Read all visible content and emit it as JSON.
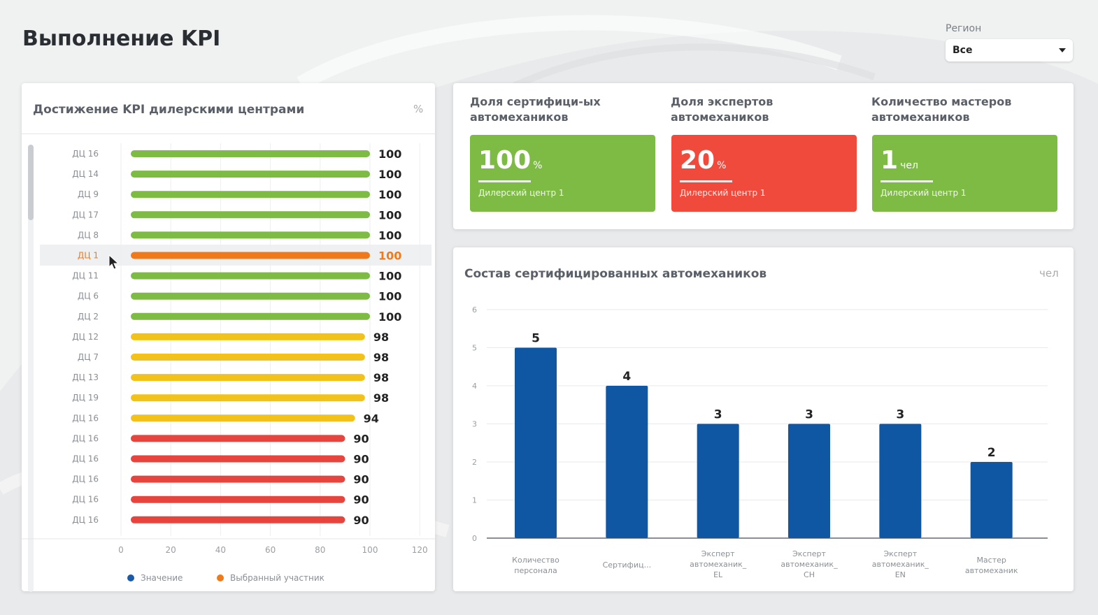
{
  "page": {
    "title": "Выполнение KPI"
  },
  "region": {
    "label": "Регион",
    "selected": "Все"
  },
  "kpi_chart": {
    "title": "Достижение KPI дилерскими центрами",
    "unit": "%",
    "legend": [
      {
        "label": "Значение",
        "color": "#1b5aa6"
      },
      {
        "label": "Выбранный участник",
        "color": "#f07a1a"
      }
    ],
    "colors": {
      "green": "#7dbb45",
      "orange": "#f07a1a",
      "yellow": "#f2c21b",
      "red": "#e6443c"
    },
    "chart_data": {
      "type": "bar",
      "orientation": "horizontal",
      "categories": [
        "ДЦ 16",
        "ДЦ 14",
        "ДЦ 9",
        "ДЦ 17",
        "ДЦ 8",
        "ДЦ 1",
        "ДЦ 11",
        "ДЦ 6",
        "ДЦ 2",
        "ДЦ 12",
        "ДЦ 7",
        "ДЦ 13",
        "ДЦ 19",
        "ДЦ 16",
        "ДЦ 16",
        "ДЦ 16",
        "ДЦ 16",
        "ДЦ 16",
        "ДЦ 16"
      ],
      "values": [
        100,
        100,
        100,
        100,
        100,
        100,
        100,
        100,
        100,
        98,
        98,
        98,
        98,
        94,
        90,
        90,
        90,
        90,
        90
      ],
      "bar_colors": [
        "green",
        "green",
        "green",
        "green",
        "green",
        "orange",
        "green",
        "green",
        "green",
        "yellow",
        "yellow",
        "yellow",
        "yellow",
        "yellow",
        "red",
        "red",
        "red",
        "red",
        "red"
      ],
      "selected_index": 5,
      "xlim": [
        0,
        120
      ],
      "xticks": [
        "0",
        "20",
        "40",
        "60",
        "80",
        "100",
        "120"
      ],
      "grid": true
    }
  },
  "kpi_tiles": [
    {
      "label": "Доля сертифици-ых автомехаников",
      "value": "100",
      "unit": "%",
      "sub": "Дилерский центр 1",
      "color": "#7dbb45"
    },
    {
      "label": "Доля экспертов автомехаников",
      "value": "20",
      "unit": "%",
      "sub": "Дилерский центр 1",
      "color": "#f04a3d"
    },
    {
      "label": "Количество мастеров автомехаников",
      "value": "1",
      "unit": "чел",
      "sub": "Дилерский центр 1",
      "color": "#7dbb45"
    }
  ],
  "composition_chart": {
    "title": "Состав сертифицированных автомехаников",
    "unit": "чел",
    "bar_color": "#0f57a3",
    "chart_data": {
      "type": "bar",
      "categories": [
        [
          "Количество",
          "персонала"
        ],
        [
          "Сертифиц..."
        ],
        [
          "Эксперт",
          "автомеханик_",
          "EL"
        ],
        [
          "Эксперт",
          "автомеханик_",
          "CH"
        ],
        [
          "Эксперт",
          "автомеханик_",
          "EN"
        ],
        [
          "Мастер",
          "автомеханик"
        ]
      ],
      "values": [
        5,
        4,
        3,
        3,
        3,
        2
      ],
      "ylim": [
        0,
        6
      ],
      "yticks": [
        "0",
        "1",
        "2",
        "3",
        "4",
        "5",
        "6"
      ],
      "grid": true
    }
  }
}
